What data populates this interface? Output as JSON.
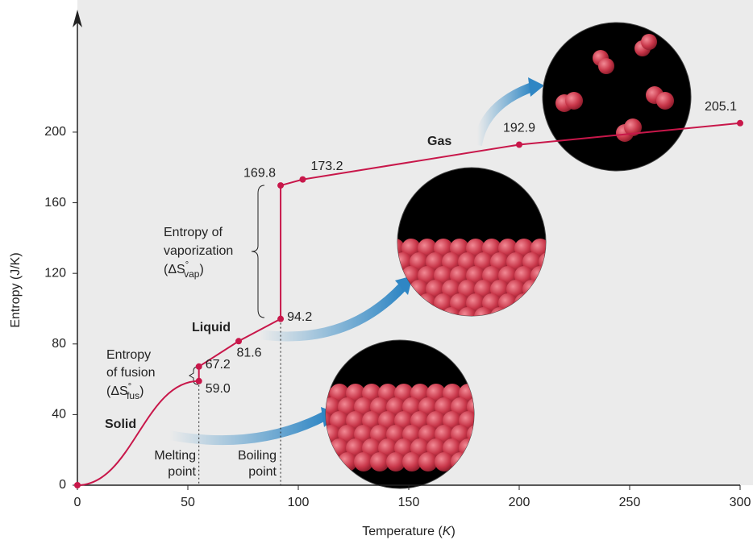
{
  "chart_data": {
    "type": "line",
    "y_label": "Entropy (J/K)",
    "x_label": {
      "main": "Temperature (",
      "var": "K",
      "close": ")"
    },
    "xlim": [
      0,
      300
    ],
    "ylim": [
      0,
      268
    ],
    "xticks": [
      0,
      50,
      100,
      150,
      200,
      250,
      300
    ],
    "yticks": [
      0,
      40,
      80,
      120,
      160,
      200
    ],
    "series": [
      {
        "color": "#c8174a",
        "x": [
          0,
          55,
          55,
          73,
          92,
          92,
          102,
          200,
          300
        ],
        "values": [
          0,
          59.0,
          67.2,
          81.6,
          94.2,
          169.8,
          173.2,
          192.9,
          205.1
        ],
        "value_labels": [
          null,
          "59.0",
          "67.2",
          "81.6",
          "94.2",
          "169.8",
          "173.2",
          "192.9",
          "205.1"
        ]
      }
    ],
    "annotations": {
      "solid": "Solid",
      "liquid": "Liquid",
      "gas": "Gas",
      "vap_line1": "Entropy of",
      "vap_line2": "vaporization",
      "vap_open": "(ΔS",
      "vap_deg": "°",
      "vap_sub": "vap",
      "vap_close": ")",
      "fus_line1": "Entropy",
      "fus_line2": "of fusion",
      "fus_open": "(ΔS",
      "fus_deg": "°",
      "fus_sub": "fus",
      "fus_close": ")",
      "melt1": "Melting",
      "melt2": "point",
      "boil1": "Boiling",
      "boil2": "point"
    }
  }
}
